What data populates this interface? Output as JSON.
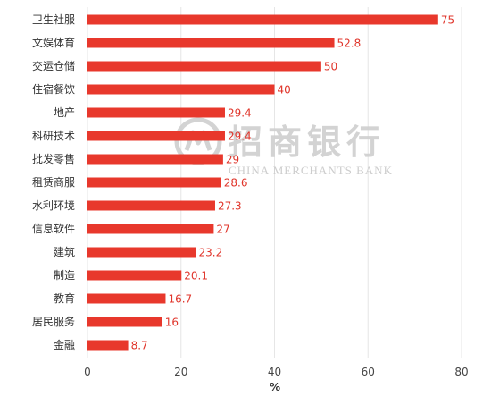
{
  "chart_data": {
    "type": "bar",
    "orientation": "horizontal",
    "categories": [
      "卫生社服",
      "文娱体育",
      "交运仓储",
      "住宿餐饮",
      "地产",
      "科研技术",
      "批发零售",
      "租赁商服",
      "水利环境",
      "信息软件",
      "建筑",
      "制造",
      "教育",
      "居民服务",
      "金融"
    ],
    "values": [
      75,
      52.8,
      50,
      40,
      29.4,
      29.4,
      29,
      28.6,
      27.3,
      27,
      23.2,
      20.1,
      16.7,
      16,
      8.7
    ],
    "value_labels": [
      "75",
      "52.8",
      "50",
      "40",
      "29.4",
      "29.4",
      "29",
      "28.6",
      "27.3",
      "27",
      "23.2",
      "20.1",
      "16.7",
      "16",
      "8.7"
    ],
    "xlabel": "%",
    "xlim": [
      0,
      80
    ],
    "xticks": [
      0,
      20,
      40,
      60,
      80
    ],
    "grid": "vertical",
    "bar_color": "#e8382c",
    "label_color": "#e0352b"
  },
  "watermark": {
    "name_cn": "招商银行",
    "name_en": "CHINA MERCHANTS BANK",
    "logo": "cmb-logo-icon"
  }
}
